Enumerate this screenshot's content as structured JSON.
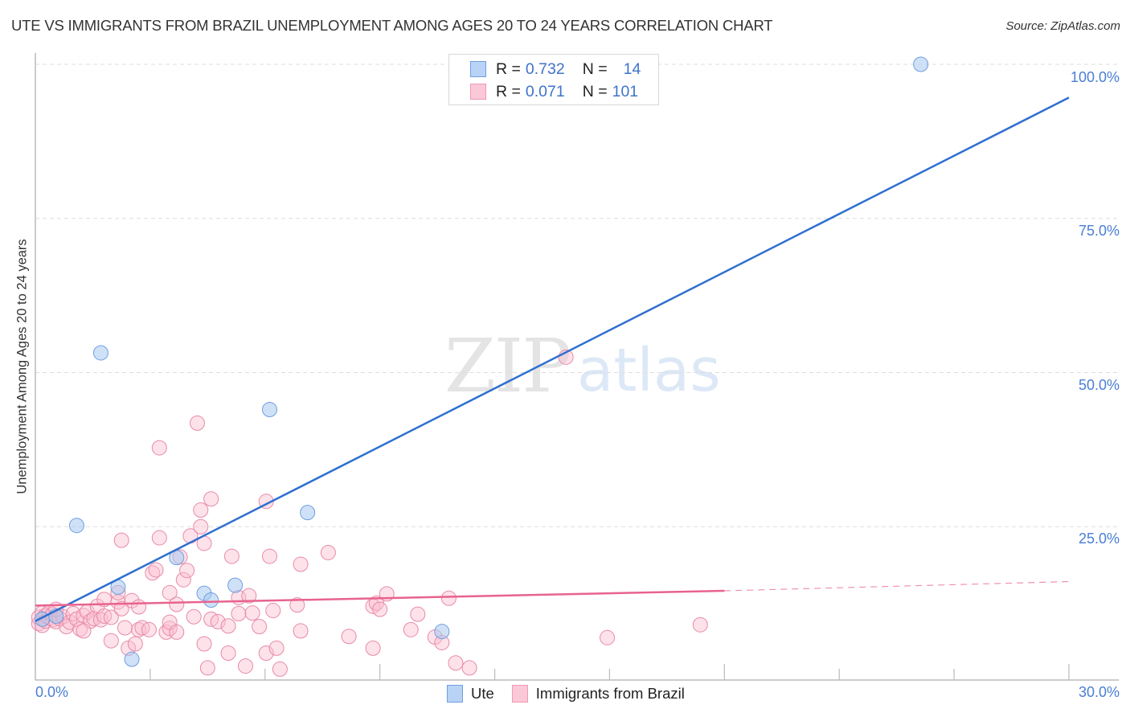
{
  "title": "UTE VS IMMIGRANTS FROM BRAZIL UNEMPLOYMENT AMONG AGES 20 TO 24 YEARS CORRELATION CHART",
  "source": "Source: ZipAtlas.com",
  "watermark": {
    "zip": "ZIP",
    "atlas": "atlas"
  },
  "legend": {
    "rows": [
      {
        "r_label": "R =",
        "r_value": "0.732",
        "n_label": "N =",
        "n_value": "14",
        "swatch_fill": "#b8d3f5",
        "swatch_border": "#6f9fe0"
      },
      {
        "r_label": "R =",
        "r_value": "0.071",
        "n_label": "N =",
        "n_value": "101",
        "swatch_fill": "#fac8d7",
        "swatch_border": "#ef9ab5"
      }
    ]
  },
  "bottom_legend": [
    {
      "label": "Ute",
      "swatch_fill": "#b8d3f5",
      "swatch_border": "#6f9fe0"
    },
    {
      "label": "Immigrants from Brazil",
      "swatch_fill": "#fac8d7",
      "swatch_border": "#ef9ab5"
    }
  ],
  "axes": {
    "ylabel": "Unemployment Among Ages 20 to 24 years",
    "y_ticks": [
      "100.0%",
      "75.0%",
      "50.0%",
      "25.0%"
    ],
    "x_ticks": [
      "0.0%",
      "30.0%"
    ]
  },
  "colors": {
    "ute_fill": "rgba(168,200,240,0.55)",
    "ute_stroke": "#6f9fe0",
    "ute_line": "#2f6fd0",
    "brazil_fill": "rgba(250,190,208,0.45)",
    "brazil_stroke": "#e88aa8",
    "brazil_line": "#e8638e",
    "grid": "#dddddd",
    "axis": "#bbbbbb",
    "tick_label": "#4a7fd4"
  },
  "chart_data": {
    "type": "scatter",
    "title": "UTE VS IMMIGRANTS FROM BRAZIL UNEMPLOYMENT AMONG AGES 20 TO 24 YEARS CORRELATION CHART",
    "xlabel": "",
    "ylabel": "Unemployment Among Ages 20 to 24 years",
    "xlim": [
      0,
      30
    ],
    "ylim": [
      0,
      100
    ],
    "grid": true,
    "legend_position": "top-center",
    "series": [
      {
        "name": "Ute",
        "R": 0.732,
        "N": 14,
        "trend": {
          "x": [
            0,
            30
          ],
          "y": [
            9.7,
            94.6
          ],
          "style": "solid"
        },
        "points": [
          [
            0.2,
            10.0
          ],
          [
            0.6,
            10.5
          ],
          [
            1.2,
            25.2
          ],
          [
            1.9,
            53.2
          ],
          [
            2.4,
            15.2
          ],
          [
            2.8,
            3.5
          ],
          [
            4.1,
            20.0
          ],
          [
            4.9,
            14.2
          ],
          [
            5.1,
            13.1
          ],
          [
            5.8,
            15.5
          ],
          [
            6.8,
            44.0
          ],
          [
            7.9,
            27.3
          ],
          [
            11.8,
            8.0
          ],
          [
            25.7,
            100.0
          ]
        ]
      },
      {
        "name": "Immigrants from Brazil",
        "R": 0.071,
        "N": 101,
        "trend": {
          "x": [
            0,
            20,
            30
          ],
          "y": [
            12.2,
            14.6,
            16.1
          ],
          "style": "solid-then-dashed"
        },
        "points": [
          [
            0.1,
            9.3
          ],
          [
            0.1,
            10.3
          ],
          [
            0.2,
            11.0
          ],
          [
            0.2,
            9.0
          ],
          [
            0.3,
            10.6
          ],
          [
            0.3,
            9.7
          ],
          [
            0.4,
            10.2
          ],
          [
            0.4,
            11.1
          ],
          [
            0.5,
            9.9
          ],
          [
            0.5,
            10.8
          ],
          [
            0.6,
            9.6
          ],
          [
            0.7,
            10.1
          ],
          [
            0.8,
            10.4
          ],
          [
            0.9,
            8.8
          ],
          [
            1.0,
            9.5
          ],
          [
            1.1,
            10.9
          ],
          [
            1.2,
            10.0
          ],
          [
            1.3,
            8.4
          ],
          [
            1.4,
            10.6
          ],
          [
            1.5,
            11.2
          ],
          [
            1.6,
            9.7
          ],
          [
            1.7,
            10.1
          ],
          [
            1.8,
            12.1
          ],
          [
            1.9,
            9.9
          ],
          [
            2.0,
            10.5
          ],
          [
            2.0,
            13.2
          ],
          [
            2.2,
            6.5
          ],
          [
            2.2,
            10.3
          ],
          [
            2.4,
            12.8
          ],
          [
            2.4,
            14.3
          ],
          [
            2.5,
            11.7
          ],
          [
            2.5,
            22.8
          ],
          [
            2.6,
            8.6
          ],
          [
            2.7,
            5.3
          ],
          [
            2.8,
            13.0
          ],
          [
            2.9,
            6.0
          ],
          [
            3.0,
            8.3
          ],
          [
            3.1,
            8.6
          ],
          [
            3.3,
            8.3
          ],
          [
            3.4,
            17.5
          ],
          [
            3.5,
            18.0
          ],
          [
            3.6,
            23.2
          ],
          [
            3.6,
            37.8
          ],
          [
            3.8,
            7.9
          ],
          [
            3.9,
            8.5
          ],
          [
            3.9,
            9.5
          ],
          [
            3.9,
            14.3
          ],
          [
            4.1,
            12.4
          ],
          [
            4.1,
            7.9
          ],
          [
            4.2,
            20.1
          ],
          [
            4.3,
            16.4
          ],
          [
            4.4,
            17.9
          ],
          [
            4.5,
            23.5
          ],
          [
            4.6,
            10.4
          ],
          [
            4.7,
            41.8
          ],
          [
            4.8,
            27.7
          ],
          [
            4.8,
            25.0
          ],
          [
            4.9,
            22.3
          ],
          [
            4.9,
            6.0
          ],
          [
            5.0,
            2.1
          ],
          [
            5.1,
            29.5
          ],
          [
            5.1,
            10.0
          ],
          [
            5.3,
            9.6
          ],
          [
            5.6,
            4.5
          ],
          [
            5.6,
            8.9
          ],
          [
            5.7,
            20.2
          ],
          [
            5.9,
            10.9
          ],
          [
            5.9,
            13.5
          ],
          [
            6.1,
            2.4
          ],
          [
            6.2,
            13.8
          ],
          [
            6.3,
            11.0
          ],
          [
            6.5,
            8.8
          ],
          [
            6.7,
            4.5
          ],
          [
            6.7,
            29.1
          ],
          [
            6.8,
            20.2
          ],
          [
            6.9,
            11.4
          ],
          [
            7.0,
            5.3
          ],
          [
            7.1,
            1.9
          ],
          [
            7.6,
            12.3
          ],
          [
            7.7,
            8.1
          ],
          [
            7.7,
            18.9
          ],
          [
            8.5,
            20.8
          ],
          [
            9.1,
            7.2
          ],
          [
            9.8,
            5.3
          ],
          [
            9.8,
            12.1
          ],
          [
            9.9,
            12.6
          ],
          [
            10.0,
            11.6
          ],
          [
            10.2,
            14.1
          ],
          [
            10.9,
            8.3
          ],
          [
            11.1,
            10.8
          ],
          [
            11.6,
            7.1
          ],
          [
            11.8,
            6.2
          ],
          [
            12.0,
            13.4
          ],
          [
            12.2,
            2.9
          ],
          [
            12.6,
            2.1
          ],
          [
            15.4,
            52.5
          ],
          [
            16.6,
            7.0
          ],
          [
            19.3,
            9.1
          ],
          [
            0.6,
            11.6
          ],
          [
            1.4,
            8.1
          ],
          [
            3.0,
            12.0
          ]
        ]
      }
    ]
  }
}
